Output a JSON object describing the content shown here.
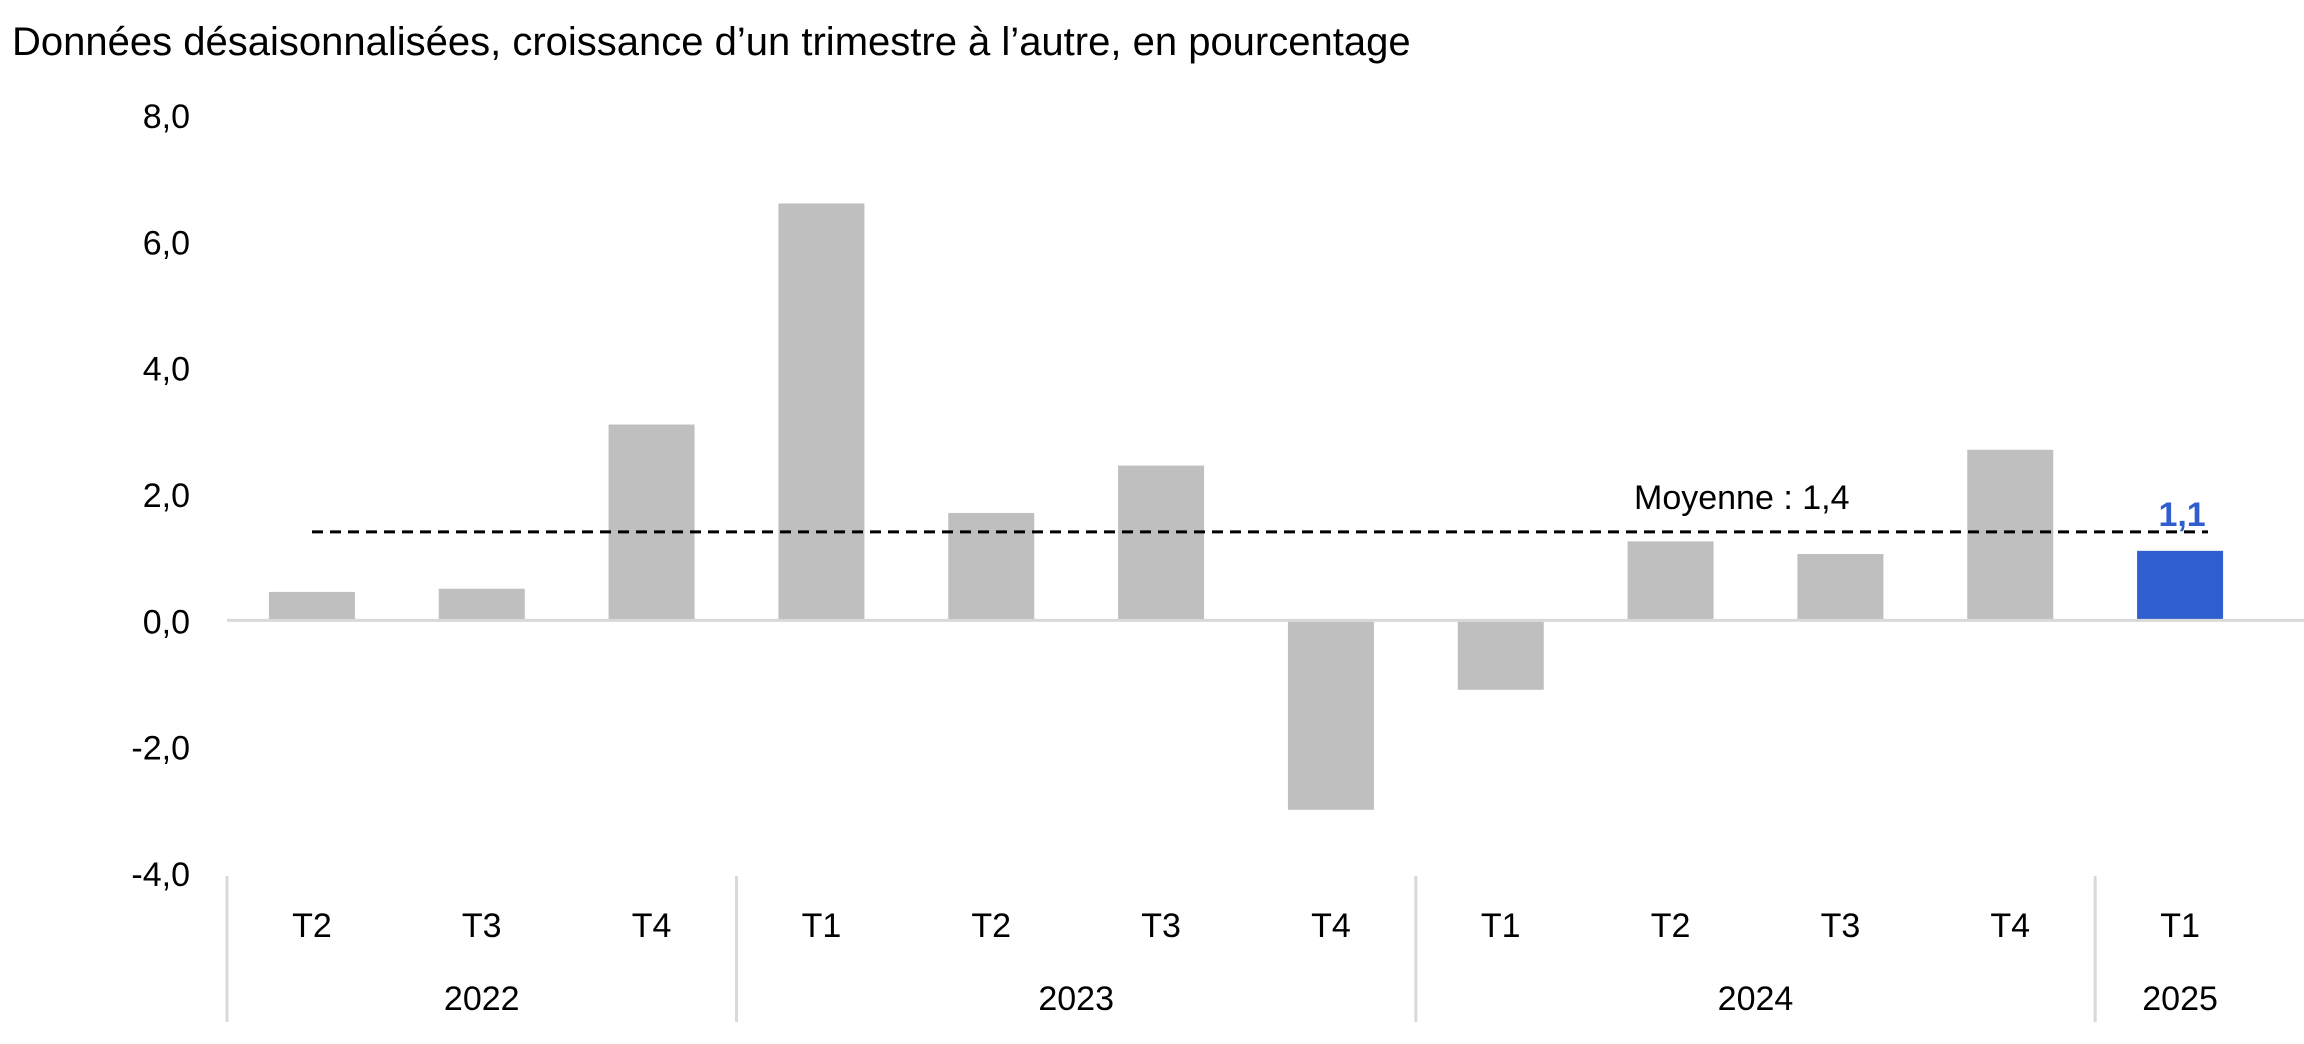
{
  "chart_data": {
    "type": "bar",
    "title": "Données désaisonnalisées, croissance d’un trimestre à l’autre, en pourcentage",
    "categories": [
      "T2",
      "T3",
      "T4",
      "T1",
      "T2",
      "T3",
      "T4",
      "T1",
      "T2",
      "T3",
      "T4",
      "T1"
    ],
    "category_groups": [
      {
        "label": "2022",
        "count": 3
      },
      {
        "label": "2023",
        "count": 4
      },
      {
        "label": "2024",
        "count": 4
      },
      {
        "label": "2025",
        "count": 1
      }
    ],
    "series": [
      {
        "values": [
          0.45,
          0.5,
          3.1,
          6.6,
          1.7,
          2.45,
          -3.0,
          -1.1,
          1.25,
          1.05,
          2.7,
          1.1
        ]
      }
    ],
    "ylim": [
      -4.0,
      8.0
    ],
    "yticks": [
      "-4,0",
      "-2,0",
      "0,0",
      "2,0",
      "4,0",
      "6,0",
      "8,0"
    ],
    "ytick_values": [
      -4,
      -2,
      0,
      2,
      4,
      6,
      8
    ],
    "grid": false,
    "reference_line": {
      "label": "Moyenne : 1,4",
      "value": 1.4
    },
    "highlight": {
      "index": 11,
      "label": "1,1"
    },
    "colors": {
      "bar": "#bfbfbf",
      "highlight": "#2f5fcf",
      "axis": "#d9d9d9",
      "text": "#000000"
    }
  }
}
